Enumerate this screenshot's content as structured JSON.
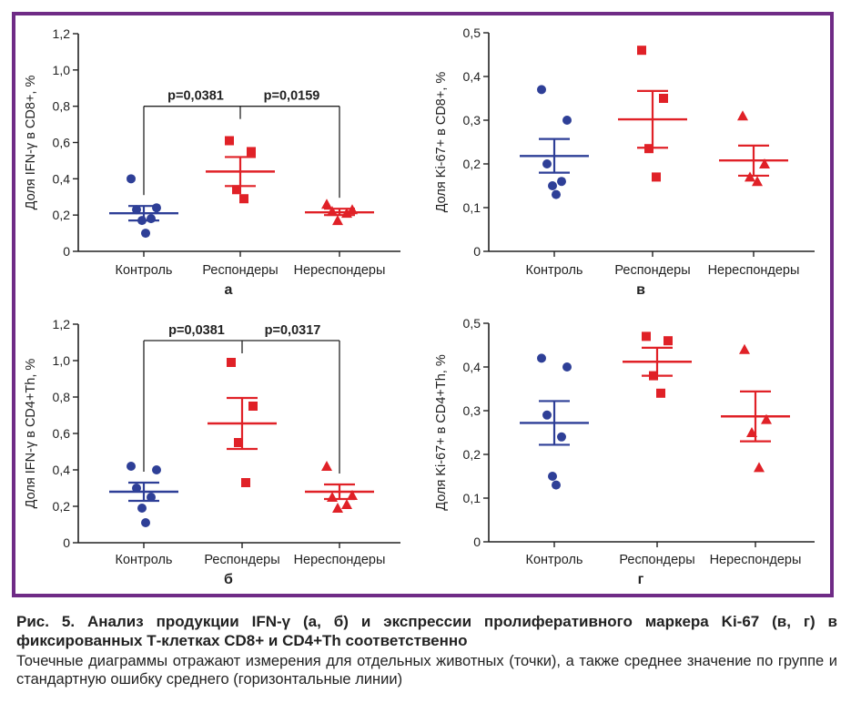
{
  "caption": {
    "title": "Рис. 5. Анализ продукции IFN-γ (а, б) и экспрессии пролиферативного маркера Ki-67 (в, г) в фиксированных Т-клетках CD8+ и CD4+Th соответственно",
    "body": "Точечные диаграммы отражают измерения для отдельных животных (точки), а также среднее значение по группе и стандартную ошибку среднего (горизонтальные линии)"
  },
  "colors": {
    "frame": "#6f2b86",
    "control": "#2e3f97",
    "responders": "#e02127",
    "nonresponders": "#e02127",
    "axis": "#222222"
  },
  "chart_data": [
    {
      "type": "scatter",
      "panel_label": "а",
      "ylabel": "Доля IFN-γ в CD8+, %",
      "ylim": [
        0,
        1.2
      ],
      "yticks": [
        "0",
        "0,2",
        "0,4",
        "0,6",
        "0,8",
        "1,0",
        "1,2"
      ],
      "categories": [
        "Контроль",
        "Респондеры",
        "Нереспондеры"
      ],
      "series": [
        {
          "category": "Контроль",
          "marker": "circle",
          "color": "#2e3f97",
          "points": [
            0.4,
            0.24,
            0.23,
            0.18,
            0.17,
            0.1
          ],
          "mean": 0.21,
          "sem": [
            0.17,
            0.25
          ]
        },
        {
          "category": "Респондеры",
          "marker": "square",
          "color": "#e02127",
          "points": [
            0.61,
            0.55,
            0.34,
            0.29
          ],
          "mean": 0.44,
          "sem": [
            0.36,
            0.52
          ]
        },
        {
          "category": "Нереспондеры",
          "marker": "triangle",
          "color": "#e02127",
          "points": [
            0.26,
            0.23,
            0.22,
            0.21,
            0.17
          ],
          "mean": 0.215,
          "sem": [
            0.2,
            0.235
          ]
        }
      ],
      "annotations": [
        {
          "label": "p=0,0381",
          "from": 0,
          "to": 1
        },
        {
          "label": "p=0,0159",
          "from": 1,
          "to": 2
        }
      ],
      "bracket_y": 0.8
    },
    {
      "type": "scatter",
      "panel_label": "в",
      "ylabel": "Доля Ki-67+ в CD8+, %",
      "ylim": [
        0,
        0.5
      ],
      "yticks": [
        "0",
        "0,1",
        "0,2",
        "0,3",
        "0,4",
        "0,5"
      ],
      "categories": [
        "Контроль",
        "Респондеры",
        "Нереспондеры"
      ],
      "series": [
        {
          "category": "Контроль",
          "marker": "circle",
          "color": "#2e3f97",
          "points": [
            0.37,
            0.3,
            0.2,
            0.16,
            0.15,
            0.13
          ],
          "mean": 0.218,
          "sem": [
            0.18,
            0.257
          ]
        },
        {
          "category": "Респондеры",
          "marker": "square",
          "color": "#e02127",
          "points": [
            0.46,
            0.35,
            0.235,
            0.17
          ],
          "mean": 0.302,
          "sem": [
            0.237,
            0.367
          ]
        },
        {
          "category": "Нереспондеры",
          "marker": "triangle",
          "color": "#e02127",
          "points": [
            0.31,
            0.2,
            0.17,
            0.16
          ],
          "mean": 0.208,
          "sem": [
            0.173,
            0.242
          ]
        }
      ]
    },
    {
      "type": "scatter",
      "panel_label": "б",
      "ylabel": "Доля IFN-γ в CD4+Th, %",
      "ylim": [
        0,
        1.2
      ],
      "yticks": [
        "0",
        "0,2",
        "0,4",
        "0,6",
        "0,8",
        "1,0",
        "1,2"
      ],
      "categories": [
        "Контроль",
        "Респондеры",
        "Нереспондеры"
      ],
      "series": [
        {
          "category": "Контроль",
          "marker": "circle",
          "color": "#2e3f97",
          "points": [
            0.42,
            0.4,
            0.3,
            0.25,
            0.19,
            0.11
          ],
          "mean": 0.28,
          "sem": [
            0.23,
            0.33
          ]
        },
        {
          "category": "Респондеры",
          "marker": "square",
          "color": "#e02127",
          "points": [
            0.99,
            0.75,
            0.55,
            0.33
          ],
          "mean": 0.655,
          "sem": [
            0.515,
            0.795
          ]
        },
        {
          "category": "Нереспондеры",
          "marker": "triangle",
          "color": "#e02127",
          "points": [
            0.42,
            0.26,
            0.25,
            0.21,
            0.19
          ],
          "mean": 0.28,
          "sem": [
            0.24,
            0.32
          ]
        }
      ],
      "annotations": [
        {
          "label": "p=0,0381",
          "from": 0,
          "to": 1
        },
        {
          "label": "p=0,0317",
          "from": 1,
          "to": 2
        }
      ],
      "bracket_y": 1.11
    },
    {
      "type": "scatter",
      "panel_label": "г",
      "ylabel": "Доля Ki-67+ в CD4+Th, %",
      "ylim": [
        0,
        0.5
      ],
      "yticks": [
        "0",
        "0,1",
        "0,2",
        "0,3",
        "0,4",
        "0,5"
      ],
      "categories": [
        "Контроль",
        "Респондеры",
        "Нереспондеры"
      ],
      "series": [
        {
          "category": "Контроль",
          "marker": "circle",
          "color": "#2e3f97",
          "points": [
            0.42,
            0.4,
            0.29,
            0.24,
            0.15,
            0.13
          ],
          "mean": 0.272,
          "sem": [
            0.222,
            0.322
          ]
        },
        {
          "category": "Респондеры",
          "marker": "square",
          "color": "#e02127",
          "points": [
            0.47,
            0.46,
            0.38,
            0.34
          ],
          "mean": 0.412,
          "sem": [
            0.38,
            0.444
          ]
        },
        {
          "category": "Нереспондеры",
          "marker": "triangle",
          "color": "#e02127",
          "points": [
            0.44,
            0.28,
            0.25,
            0.17
          ],
          "mean": 0.287,
          "sem": [
            0.23,
            0.344
          ]
        }
      ]
    }
  ]
}
